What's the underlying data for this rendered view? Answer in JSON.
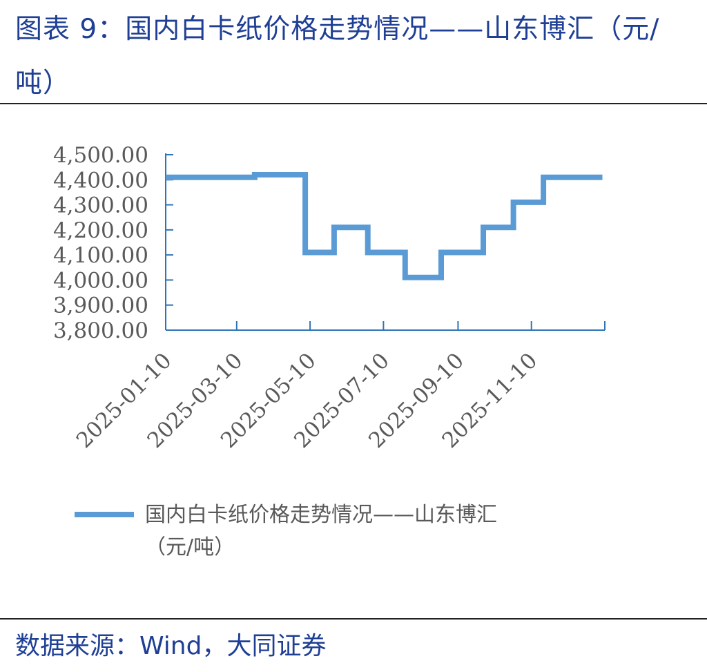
{
  "header": {
    "title": "图表 9：国内白卡纸价格走势情况——山东博汇（元/吨）"
  },
  "footer": {
    "source": "数据来源：Wind，大同证券"
  },
  "colors": {
    "series": "#5b9bd5",
    "axis": "#2e75b6",
    "tick_text": "#595959",
    "title": "#1f3f95"
  },
  "chart_data": {
    "type": "line",
    "step": true,
    "title": "",
    "xlabel": "",
    "ylabel": "",
    "ylim": [
      3800,
      4500
    ],
    "yticks": [
      "3,800.00",
      "3,900.00",
      "4,000.00",
      "4,100.00",
      "4,200.00",
      "4,300.00",
      "4,400.00",
      "4,500.00"
    ],
    "xlim": [
      "2025-01-10",
      "2026-01-10"
    ],
    "xticks": [
      "2025-01-10",
      "2025-03-10",
      "2025-05-10",
      "2025-07-10",
      "2025-09-10",
      "2025-11-10"
    ],
    "grid": false,
    "legend": "bottom",
    "series": [
      {
        "name": "国内白卡纸价格走势情况——山东博汇（元/吨）",
        "points": [
          [
            "2025-01-10",
            4410
          ],
          [
            "2025-03-25",
            4410
          ],
          [
            "2025-03-25",
            4420
          ],
          [
            "2025-05-06",
            4420
          ],
          [
            "2025-05-06",
            4110
          ],
          [
            "2025-05-30",
            4110
          ],
          [
            "2025-05-30",
            4210
          ],
          [
            "2025-06-27",
            4210
          ],
          [
            "2025-06-27",
            4110
          ],
          [
            "2025-07-28",
            4110
          ],
          [
            "2025-07-28",
            4010
          ],
          [
            "2025-08-27",
            4010
          ],
          [
            "2025-08-27",
            4110
          ],
          [
            "2025-10-01",
            4110
          ],
          [
            "2025-10-01",
            4210
          ],
          [
            "2025-10-26",
            4210
          ],
          [
            "2025-10-26",
            4310
          ],
          [
            "2025-11-20",
            4310
          ],
          [
            "2025-11-20",
            4410
          ],
          [
            "2026-01-08",
            4410
          ]
        ]
      }
    ]
  }
}
